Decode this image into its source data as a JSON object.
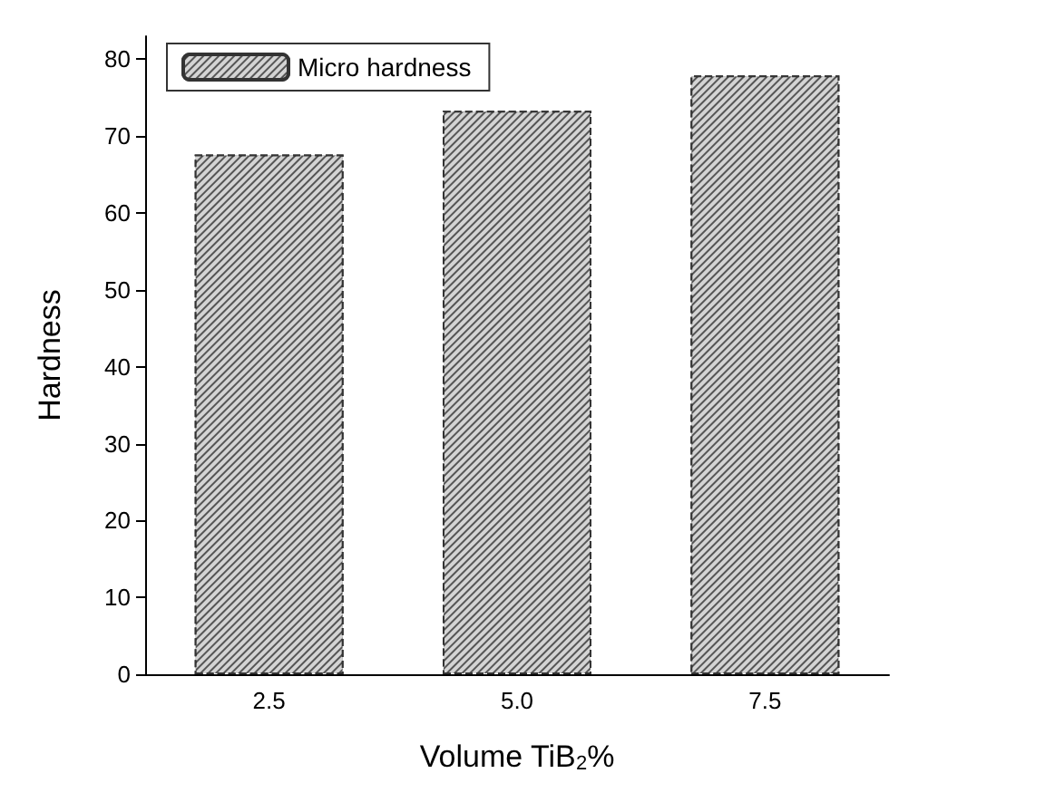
{
  "chart_data": {
    "type": "bar",
    "xlabel": "Volume TiB$_{2}$%",
    "ylabel": "Hardness",
    "categories": [
      "2.5",
      "5.0",
      "7.5"
    ],
    "series": [
      {
        "name": "Micro hardness",
        "color": "#555555",
        "values": [
          67.6,
          73.3,
          77.9
        ]
      }
    ],
    "ylim": [
      0,
      83
    ],
    "yticks": [
      0,
      10,
      20,
      30,
      40,
      50,
      60,
      70,
      80
    ],
    "grid": false,
    "legend": "top left"
  }
}
